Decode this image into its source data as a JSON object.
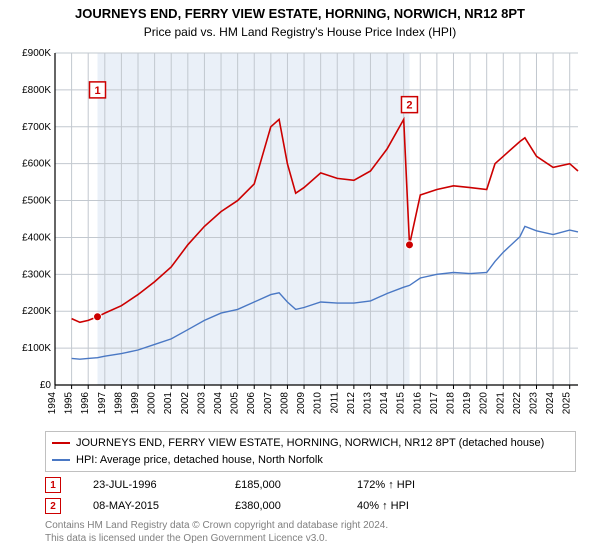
{
  "title": "JOURNEYS END, FERRY VIEW ESTATE, HORNING, NORWICH, NR12 8PT",
  "subtitle": "Price paid vs. HM Land Registry's House Price Index (HPI)",
  "chart": {
    "type": "line",
    "plot_bg_fill": "#eaf0f8",
    "outside_bg": "#ffffff",
    "grid_color": "#c2c8cf",
    "axis_color": "#000000",
    "label_fontsize": 11,
    "tick_fontsize": 10,
    "x": {
      "min": 1994,
      "max": 2025.5,
      "ticks_step": 1,
      "tick_rotate": -90
    },
    "y": {
      "min": 0,
      "max": 900000,
      "ticks_step": 100000,
      "tick_labels": [
        "£0",
        "£100K",
        "£200K",
        "£300K",
        "£400K",
        "£500K",
        "£600K",
        "£700K",
        "£800K",
        "£900K"
      ]
    },
    "shaded_x_ranges": [
      {
        "from": 1996.56,
        "to": 2015.35
      }
    ],
    "series": [
      {
        "name": "property",
        "label": "JOURNEYS END, FERRY VIEW ESTATE, HORNING, NORWICH, NR12 8PT (detached house)",
        "color": "#cc0000",
        "line_width": 1.6
      },
      {
        "name": "hpi",
        "label": "HPI: Average price, detached house, North Norfolk",
        "color": "#4a78c4",
        "line_width": 1.4
      }
    ],
    "markers": [
      {
        "badge": "1",
        "x": 1996.56,
        "y": 185000,
        "color": "#cc0000",
        "badge_y": 800000
      },
      {
        "badge": "2",
        "x": 2015.35,
        "y": 380000,
        "color": "#cc0000",
        "badge_y": 760000
      }
    ],
    "data": {
      "years": [
        1995,
        1995.5,
        1996,
        1996.56,
        1997,
        1998,
        1999,
        2000,
        2001,
        2002,
        2003,
        2004,
        2005,
        2006,
        2007,
        2007.5,
        2008,
        2008.5,
        2009,
        2010,
        2011,
        2012,
        2013,
        2014,
        2015,
        2015.35,
        2016,
        2017,
        2018,
        2019,
        2020,
        2020.5,
        2021,
        2022,
        2022.3,
        2023,
        2024,
        2025,
        2025.5
      ],
      "property": [
        180000,
        170000,
        175000,
        185000,
        195000,
        215000,
        245000,
        280000,
        320000,
        380000,
        430000,
        470000,
        500000,
        545000,
        700000,
        720000,
        600000,
        520000,
        535000,
        575000,
        560000,
        555000,
        580000,
        640000,
        720000,
        380000,
        515000,
        530000,
        540000,
        535000,
        530000,
        600000,
        620000,
        660000,
        670000,
        620000,
        590000,
        600000,
        580000
      ],
      "hpi": [
        72000,
        70000,
        72000,
        74000,
        78000,
        85000,
        95000,
        110000,
        125000,
        150000,
        175000,
        195000,
        205000,
        225000,
        245000,
        250000,
        225000,
        205000,
        210000,
        225000,
        222000,
        222000,
        228000,
        248000,
        265000,
        270000,
        290000,
        300000,
        305000,
        302000,
        305000,
        335000,
        360000,
        402000,
        430000,
        418000,
        408000,
        420000,
        415000
      ]
    }
  },
  "transactions": [
    {
      "badge": "1",
      "date": "23-JUL-1996",
      "price": "£185,000",
      "vs_hpi": "172% ↑ HPI"
    },
    {
      "badge": "2",
      "date": "08-MAY-2015",
      "price": "£380,000",
      "vs_hpi": "40% ↑ HPI"
    }
  ],
  "license_line1": "Contains HM Land Registry data © Crown copyright and database right 2024.",
  "license_line2": "This data is licensed under the Open Government Licence v3.0."
}
